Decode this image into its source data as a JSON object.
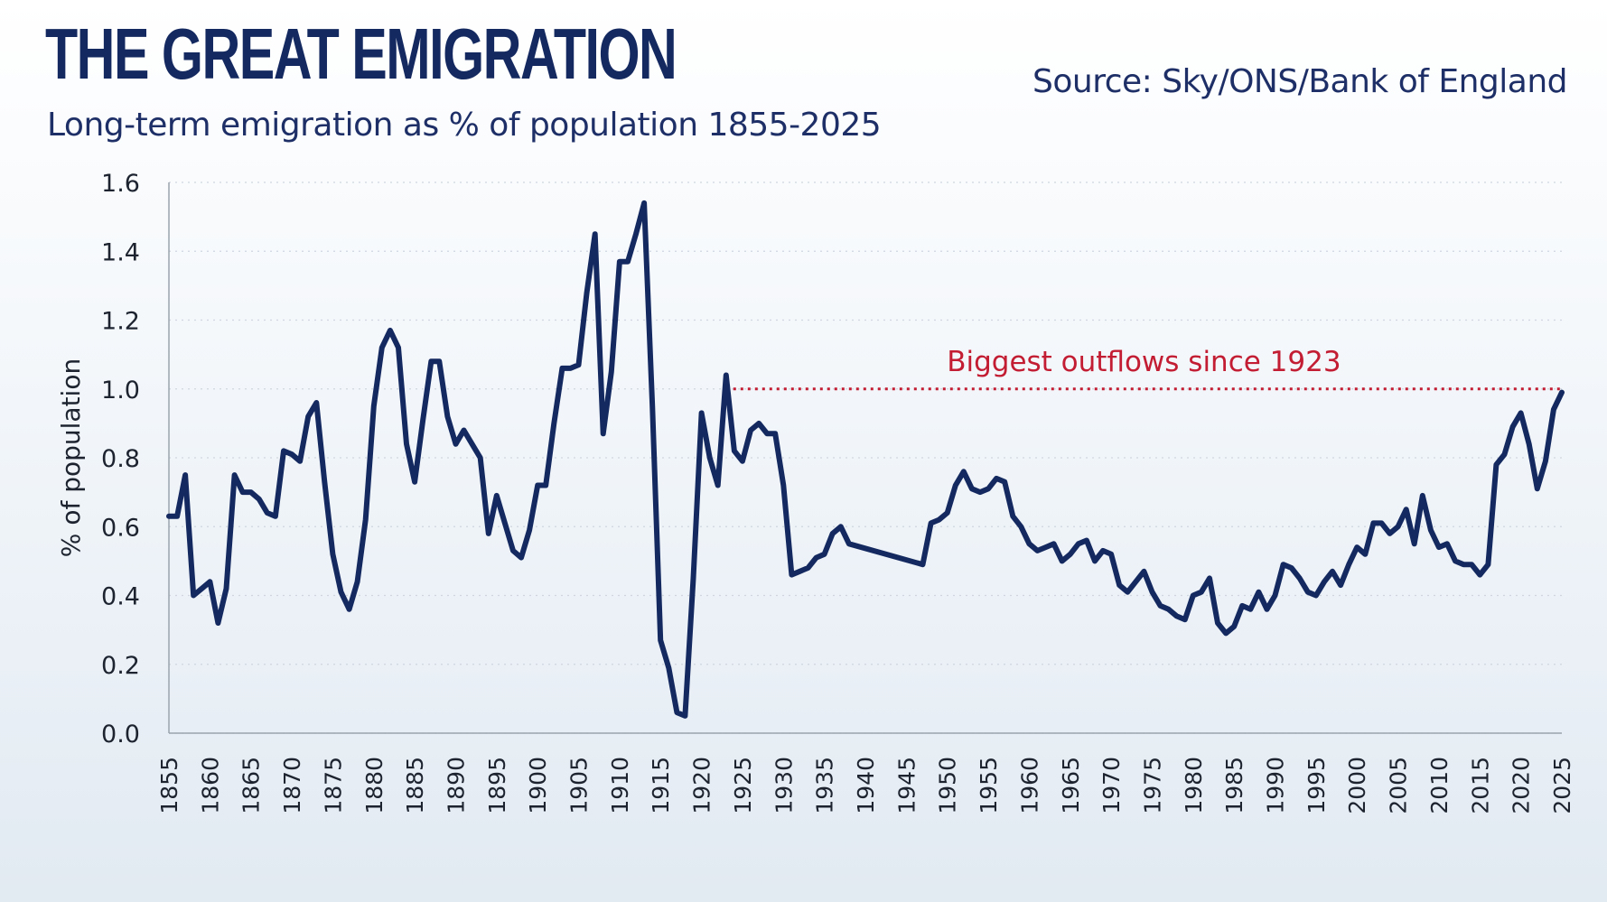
{
  "title": "THE GREAT EMIGRATION",
  "subtitle": "Long-term emigration as % of population 1855-2025",
  "source": "Source: Sky/ONS/Bank of England",
  "colors": {
    "line": "#14295f",
    "reference": "#c21d32",
    "text": "#14295f",
    "grid": "#cfd6df"
  },
  "chart_data": {
    "type": "line",
    "title": "THE GREAT EMIGRATION",
    "subtitle": "Long-term emigration as % of population 1855-2025",
    "xlabel": "",
    "ylabel": "% of population",
    "xlim": [
      1855,
      2025
    ],
    "ylim": [
      0,
      1.6
    ],
    "yticks": [
      "0.0",
      "0.2",
      "0.4",
      "0.6",
      "0.8",
      "1.0",
      "1.2",
      "1.4",
      "1.6"
    ],
    "xticks": [
      "1855",
      "1860",
      "1865",
      "1870",
      "1875",
      "1880",
      "1885",
      "1890",
      "1895",
      "1900",
      "1905",
      "1910",
      "1915",
      "1920",
      "1925",
      "1930",
      "1935",
      "1940",
      "1945",
      "1950",
      "1955",
      "1960",
      "1965",
      "1970",
      "1975",
      "1980",
      "1985",
      "1990",
      "1995",
      "2000",
      "2005",
      "2010",
      "2015",
      "2020",
      "2025"
    ],
    "grid": true,
    "series": [
      {
        "name": "Long-term emigration",
        "x": [
          1855,
          1856,
          1857,
          1858,
          1859,
          1860,
          1861,
          1862,
          1863,
          1864,
          1865,
          1866,
          1867,
          1868,
          1869,
          1870,
          1871,
          1872,
          1873,
          1874,
          1875,
          1876,
          1877,
          1878,
          1879,
          1880,
          1881,
          1882,
          1883,
          1884,
          1885,
          1886,
          1887,
          1888,
          1889,
          1890,
          1891,
          1892,
          1893,
          1894,
          1895,
          1896,
          1897,
          1898,
          1899,
          1900,
          1901,
          1902,
          1903,
          1904,
          1905,
          1906,
          1907,
          1908,
          1909,
          1910,
          1911,
          1912,
          1913,
          1914,
          1915,
          1916,
          1917,
          1918,
          1919,
          1920,
          1921,
          1922,
          1923,
          1924,
          1925,
          1926,
          1927,
          1928,
          1929,
          1930,
          1931,
          1932,
          1933,
          1934,
          1935,
          1936,
          1937,
          1938,
          1947,
          1948,
          1949,
          1950,
          1951,
          1952,
          1953,
          1954,
          1955,
          1956,
          1957,
          1958,
          1959,
          1960,
          1961,
          1962,
          1963,
          1964,
          1965,
          1966,
          1967,
          1968,
          1969,
          1970,
          1971,
          1972,
          1973,
          1974,
          1975,
          1976,
          1977,
          1978,
          1979,
          1980,
          1981,
          1982,
          1983,
          1984,
          1985,
          1986,
          1987,
          1988,
          1989,
          1990,
          1991,
          1992,
          1993,
          1994,
          1995,
          1996,
          1997,
          1998,
          1999,
          2000,
          2001,
          2002,
          2003,
          2004,
          2005,
          2006,
          2007,
          2008,
          2009,
          2010,
          2011,
          2012,
          2013,
          2014,
          2015,
          2016,
          2017,
          2018,
          2019,
          2020,
          2021,
          2022,
          2023,
          2024,
          2025
        ],
        "values": [
          0.63,
          0.63,
          0.75,
          0.4,
          0.42,
          0.44,
          0.32,
          0.42,
          0.75,
          0.7,
          0.7,
          0.68,
          0.64,
          0.63,
          0.82,
          0.81,
          0.79,
          0.92,
          0.96,
          0.73,
          0.52,
          0.41,
          0.36,
          0.44,
          0.62,
          0.95,
          1.12,
          1.17,
          1.12,
          0.84,
          0.73,
          0.91,
          1.08,
          1.08,
          0.92,
          0.84,
          0.88,
          0.84,
          0.8,
          0.58,
          0.69,
          0.61,
          0.53,
          0.51,
          0.59,
          0.72,
          0.72,
          0.9,
          1.06,
          1.06,
          1.07,
          1.28,
          1.45,
          0.87,
          1.05,
          1.37,
          1.37,
          1.45,
          1.54,
          0.95,
          0.27,
          0.19,
          0.06,
          0.05,
          0.45,
          0.93,
          0.8,
          0.72,
          1.04,
          0.82,
          0.79,
          0.88,
          0.9,
          0.87,
          0.87,
          0.72,
          0.46,
          0.47,
          0.48,
          0.51,
          0.52,
          0.58,
          0.6,
          0.55,
          0.49,
          0.61,
          0.62,
          0.64,
          0.72,
          0.76,
          0.71,
          0.7,
          0.71,
          0.74,
          0.73,
          0.63,
          0.6,
          0.55,
          0.53,
          0.54,
          0.55,
          0.5,
          0.52,
          0.55,
          0.56,
          0.5,
          0.53,
          0.52,
          0.43,
          0.41,
          0.44,
          0.47,
          0.41,
          0.37,
          0.36,
          0.34,
          0.33,
          0.4,
          0.41,
          0.45,
          0.32,
          0.29,
          0.31,
          0.37,
          0.36,
          0.41,
          0.36,
          0.4,
          0.49,
          0.48,
          0.45,
          0.41,
          0.4,
          0.44,
          0.47,
          0.43,
          0.49,
          0.54,
          0.52,
          0.61,
          0.61,
          0.58,
          0.6,
          0.65,
          0.55,
          0.69,
          0.59,
          0.54,
          0.55,
          0.5,
          0.49,
          0.49,
          0.46,
          0.49,
          0.78,
          0.81,
          0.89,
          0.93,
          0.84,
          0.71,
          0.79,
          0.94,
          0.99
        ]
      }
    ],
    "reference_line": {
      "y": 1.0,
      "from_x": 1923,
      "to_x": 2025,
      "style": "dotted"
    },
    "annotations": [
      {
        "text": "Biggest outflows since 1923",
        "x": 1974,
        "y": 1.0
      }
    ]
  }
}
